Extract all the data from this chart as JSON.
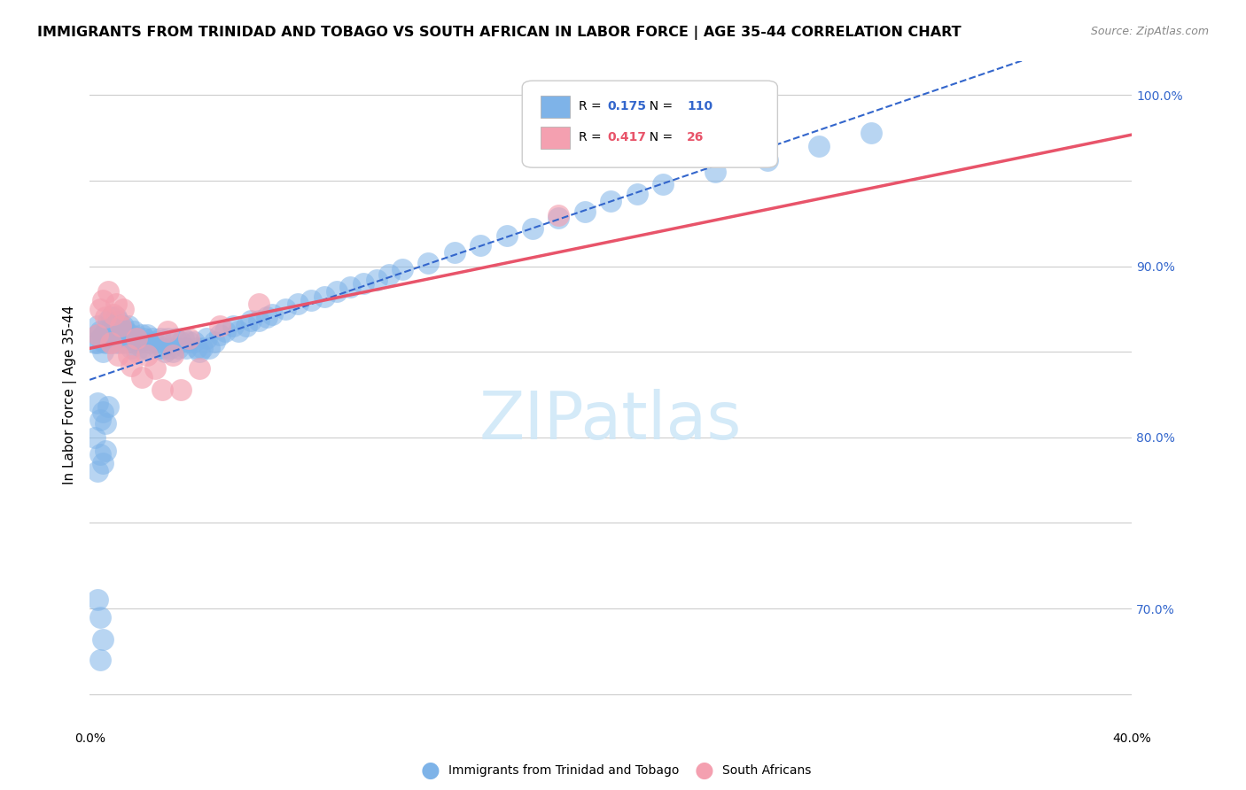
{
  "title": "IMMIGRANTS FROM TRINIDAD AND TOBAGO VS SOUTH AFRICAN IN LABOR FORCE | AGE 35-44 CORRELATION CHART",
  "source": "Source: ZipAtlas.com",
  "ylabel": "In Labor Force | Age 35-44",
  "xlim": [
    0.0,
    0.4
  ],
  "ylim": [
    0.63,
    1.02
  ],
  "R_blue": 0.175,
  "N_blue": 110,
  "R_pink": 0.417,
  "N_pink": 26,
  "blue_color": "#7EB3E8",
  "pink_color": "#F4A0B0",
  "blue_line_color": "#3366CC",
  "pink_line_color": "#E8546A",
  "legend_label_blue": "Immigrants from Trinidad and Tobago",
  "legend_label_pink": "South Africans",
  "blue_points_x": [
    0.002,
    0.003,
    0.003,
    0.003,
    0.004,
    0.004,
    0.005,
    0.005,
    0.005,
    0.006,
    0.006,
    0.007,
    0.007,
    0.007,
    0.008,
    0.008,
    0.008,
    0.009,
    0.009,
    0.01,
    0.01,
    0.01,
    0.011,
    0.011,
    0.012,
    0.012,
    0.013,
    0.013,
    0.014,
    0.014,
    0.015,
    0.015,
    0.016,
    0.016,
    0.017,
    0.017,
    0.018,
    0.018,
    0.019,
    0.02,
    0.02,
    0.021,
    0.022,
    0.022,
    0.023,
    0.024,
    0.025,
    0.026,
    0.027,
    0.028,
    0.029,
    0.03,
    0.031,
    0.032,
    0.033,
    0.034,
    0.035,
    0.036,
    0.037,
    0.038,
    0.04,
    0.041,
    0.042,
    0.043,
    0.045,
    0.046,
    0.048,
    0.05,
    0.052,
    0.055,
    0.057,
    0.06,
    0.062,
    0.065,
    0.068,
    0.07,
    0.075,
    0.08,
    0.085,
    0.09,
    0.095,
    0.1,
    0.105,
    0.11,
    0.115,
    0.12,
    0.13,
    0.14,
    0.15,
    0.16,
    0.17,
    0.18,
    0.19,
    0.2,
    0.21,
    0.22,
    0.24,
    0.26,
    0.28,
    0.3,
    0.002,
    0.003,
    0.003,
    0.004,
    0.004,
    0.005,
    0.005,
    0.006,
    0.006,
    0.007
  ],
  "blue_points_y": [
    0.855,
    0.855,
    0.86,
    0.865,
    0.858,
    0.862,
    0.85,
    0.856,
    0.86,
    0.855,
    0.862,
    0.858,
    0.862,
    0.868,
    0.855,
    0.862,
    0.87,
    0.858,
    0.865,
    0.855,
    0.862,
    0.87,
    0.86,
    0.868,
    0.855,
    0.865,
    0.858,
    0.865,
    0.855,
    0.862,
    0.858,
    0.865,
    0.852,
    0.86,
    0.855,
    0.862,
    0.85,
    0.858,
    0.855,
    0.852,
    0.86,
    0.858,
    0.852,
    0.86,
    0.855,
    0.858,
    0.856,
    0.852,
    0.858,
    0.852,
    0.85,
    0.858,
    0.852,
    0.85,
    0.858,
    0.852,
    0.856,
    0.858,
    0.852,
    0.856,
    0.856,
    0.852,
    0.85,
    0.852,
    0.858,
    0.852,
    0.856,
    0.86,
    0.862,
    0.865,
    0.862,
    0.865,
    0.868,
    0.868,
    0.87,
    0.872,
    0.875,
    0.878,
    0.88,
    0.882,
    0.885,
    0.888,
    0.89,
    0.892,
    0.895,
    0.898,
    0.902,
    0.908,
    0.912,
    0.918,
    0.922,
    0.928,
    0.932,
    0.938,
    0.942,
    0.948,
    0.955,
    0.962,
    0.97,
    0.978,
    0.8,
    0.82,
    0.78,
    0.81,
    0.79,
    0.815,
    0.785,
    0.808,
    0.792,
    0.818
  ],
  "pink_points_x": [
    0.003,
    0.004,
    0.005,
    0.006,
    0.007,
    0.008,
    0.009,
    0.01,
    0.011,
    0.012,
    0.013,
    0.015,
    0.016,
    0.018,
    0.02,
    0.022,
    0.025,
    0.028,
    0.03,
    0.032,
    0.035,
    0.038,
    0.042,
    0.05,
    0.065,
    0.18
  ],
  "pink_points_y": [
    0.86,
    0.875,
    0.88,
    0.87,
    0.885,
    0.855,
    0.872,
    0.878,
    0.848,
    0.865,
    0.875,
    0.848,
    0.842,
    0.858,
    0.835,
    0.848,
    0.84,
    0.828,
    0.862,
    0.848,
    0.828,
    0.858,
    0.84,
    0.865,
    0.878,
    0.93
  ]
}
